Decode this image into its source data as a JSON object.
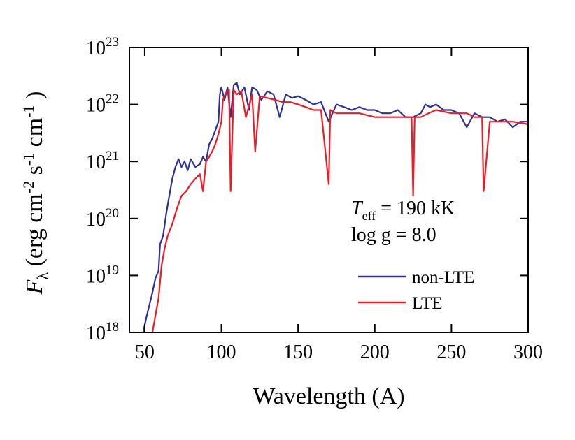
{
  "chart_data": {
    "type": "line",
    "xlabel": "Wavelength (A)",
    "ylabel": [
      [
        "F",
        "italic"
      ],
      [
        "λ",
        "sub"
      ],
      [
        " (erg cm",
        "normal"
      ],
      [
        "-2",
        "sup"
      ],
      [
        " s",
        "normal"
      ],
      [
        "-1",
        "sup"
      ],
      [
        " cm",
        "normal"
      ],
      [
        "-1",
        "sup"
      ],
      [
        " )",
        "normal"
      ]
    ],
    "annotations": [
      [
        [
          "T",
          "italic"
        ],
        [
          "eff",
          "sub"
        ],
        [
          " = 190 kK",
          "normal"
        ]
      ],
      [
        [
          "log g = 8.0",
          "normal"
        ]
      ]
    ],
    "xlim": [
      40,
      300
    ],
    "xticks": [
      50,
      100,
      150,
      200,
      250,
      300
    ],
    "ylim": [
      1e+18,
      1e+23
    ],
    "log_y": true,
    "yticks": [
      {
        "value": 1e+18,
        "label": "10^18"
      },
      {
        "value": 1e+19,
        "label": "10^19"
      },
      {
        "value": 1e+20,
        "label": "10^20"
      },
      {
        "value": 1e+21,
        "label": "10^21"
      },
      {
        "value": 1e+22,
        "label": "10^22"
      },
      {
        "value": 1e+23,
        "label": "10^23"
      }
    ],
    "legend": "lower right",
    "series": [
      {
        "name": "non-LTE",
        "color": "#2e3192",
        "x": [
          49,
          51,
          53,
          55,
          57,
          59,
          60,
          62,
          64,
          66,
          68,
          70,
          72,
          74,
          76,
          78,
          80,
          83,
          86,
          88,
          90,
          92,
          94,
          96,
          98,
          99,
          100,
          102,
          104,
          106,
          108,
          110,
          112,
          115,
          118,
          120,
          123,
          126,
          130,
          134,
          138,
          142,
          146,
          150,
          155,
          160,
          165,
          170,
          175,
          180,
          185,
          190,
          195,
          200,
          205,
          210,
          215,
          220,
          225,
          230,
          233,
          236,
          240,
          245,
          250,
          255,
          260,
          265,
          270,
          275,
          280,
          285,
          290,
          295,
          300
        ],
        "values": [
          1e+18,
          1.8e+18,
          3e+18,
          5e+18,
          9e+18,
          1.2e+19,
          3.5e+19,
          5e+19,
          1.2e+20,
          2.5e+20,
          5e+20,
          8e+20,
          1.1e+21,
          8e+20,
          1e+21,
          7e+20,
          1.1e+21,
          8e+20,
          9e+20,
          1.2e+21,
          1e+21,
          2e+21,
          2.5e+21,
          3.5e+21,
          5e+21,
          1.5e+22,
          2e+22,
          1.2e+22,
          2e+22,
          6e+21,
          2.2e+22,
          2.4e+22,
          1.5e+22,
          2e+22,
          8e+21,
          2e+22,
          1.8e+22,
          1.2e+22,
          1.7e+22,
          1.5e+22,
          6e+21,
          1.5e+22,
          1.3e+22,
          1.4e+22,
          1.2e+22,
          1e+22,
          1.1e+22,
          5e+21,
          1e+22,
          9e+21,
          8e+21,
          9e+21,
          8e+21,
          8e+21,
          7e+21,
          7e+21,
          8e+21,
          6e+21,
          6e+21,
          7e+21,
          1e+22,
          9e+21,
          1e+22,
          8e+21,
          8e+21,
          7e+21,
          4e+21,
          7e+21,
          6e+21,
          6e+21,
          5e+21,
          5.5e+21,
          4e+21,
          5e+21,
          5e+21
        ]
      },
      {
        "name": "LTE",
        "color": "#ed1c24",
        "x": [
          55,
          57,
          59,
          61,
          63,
          65,
          68,
          71,
          74,
          77,
          80,
          83,
          86,
          88,
          90,
          92,
          94,
          96,
          98,
          100,
          101,
          103,
          105,
          106,
          108,
          110,
          113,
          116,
          120,
          122,
          125,
          130,
          135,
          140,
          145,
          150,
          155,
          160,
          165,
          170,
          171,
          175,
          180,
          190,
          200,
          210,
          220,
          224,
          225,
          226,
          230,
          235,
          240,
          250,
          260,
          265,
          270,
          271,
          275,
          280,
          290,
          300
        ],
        "values": [
          1e+18,
          2e+18,
          4e+18,
          1.5e+19,
          3e+19,
          5e+19,
          8e+19,
          1.5e+20,
          2.5e+20,
          3e+20,
          4e+20,
          5e+20,
          6e+20,
          3e+20,
          1e+21,
          1.2e+21,
          1.5e+21,
          2e+21,
          3e+21,
          5e+21,
          1.2e+22,
          1.6e+22,
          1.8e+22,
          3e+20,
          1.8e+22,
          1.5e+22,
          1.7e+22,
          6e+21,
          1.5e+22,
          1.5e+21,
          1.4e+22,
          1.3e+22,
          1.2e+22,
          1.1e+22,
          1.1e+22,
          1e+22,
          9e+21,
          8e+21,
          8e+21,
          4e+20,
          8e+21,
          7e+21,
          7e+21,
          7e+21,
          6e+21,
          6e+21,
          6e+21,
          6e+21,
          2.5e+20,
          6e+21,
          6e+21,
          7e+21,
          8e+21,
          7e+21,
          7e+21,
          6e+21,
          6e+21,
          3e+20,
          5e+21,
          5e+21,
          5e+21,
          4.5e+21
        ]
      }
    ]
  }
}
